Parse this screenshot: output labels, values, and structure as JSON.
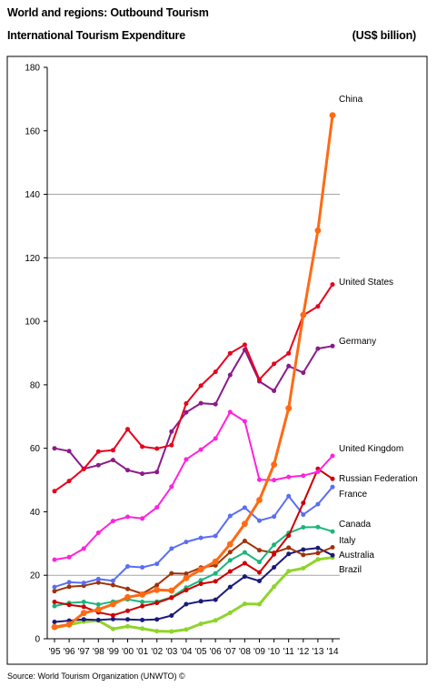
{
  "header": {
    "title_line1": "World and regions: Outbound Tourism",
    "title_line2": "International Tourism Expenditure",
    "unit": "(US$ billion)"
  },
  "footer": {
    "source": "Source: World Tourism Organization (UNWTO) ©"
  },
  "chart_data": {
    "type": "line",
    "title": "International Tourism Expenditure",
    "ylabel": "(US$ billion)",
    "xlabel": "",
    "ylim": [
      0,
      180
    ],
    "yticks": [
      0,
      20,
      40,
      60,
      80,
      100,
      120,
      140,
      160,
      180
    ],
    "grid": "horizontal gridlines at 20, 120, 140",
    "legend": "labels at right end of lines",
    "categories": [
      "'95",
      "'96",
      "'97",
      "'98",
      "'99",
      "'00",
      "'01",
      "'02",
      "'03",
      "'04",
      "'05",
      "'06",
      "'07",
      "'08",
      "'09",
      "'10",
      "'11",
      "'12",
      "'13",
      "'14"
    ],
    "series": [
      {
        "name": "China",
        "color": "#ff6a13",
        "values": [
          3.7,
          4.5,
          8.1,
          9.2,
          10.9,
          13.1,
          13.9,
          15.4,
          15.2,
          19.1,
          21.8,
          24.3,
          29.8,
          36.2,
          43.7,
          54.9,
          72.6,
          102,
          128.6,
          164.9
        ]
      },
      {
        "name": "United States",
        "color": "#e8001c",
        "values": [
          46.5,
          49.7,
          53.5,
          59,
          59.4,
          66,
          60.5,
          59.9,
          61,
          74.1,
          79.7,
          84.1,
          89.9,
          92.6,
          81.7,
          86.6,
          89.9,
          101.9,
          104.7,
          111.6
        ]
      },
      {
        "name": "Germany",
        "color": "#8b1a89",
        "values": [
          60,
          59.1,
          53.5,
          54.7,
          56.3,
          53.1,
          52,
          52.5,
          65.3,
          71.3,
          74.2,
          73.9,
          83.1,
          91,
          81.1,
          78.1,
          85.9,
          83.8,
          91.4,
          92.2
        ]
      },
      {
        "name": "United Kingdom",
        "color": "#ff22dd",
        "values": [
          24.9,
          25.7,
          28.4,
          33.4,
          37.1,
          38.4,
          37.9,
          41.4,
          47.9,
          56.5,
          59.6,
          63.1,
          71.4,
          68.5,
          50.1,
          50,
          51,
          51.4,
          52.6,
          57.6
        ]
      },
      {
        "name": "Russian Federation",
        "color": "#cc0000",
        "values": [
          11.6,
          10.7,
          10.1,
          8.3,
          7.4,
          8.8,
          10.3,
          11.3,
          12.9,
          15.3,
          17.3,
          18.1,
          21.2,
          23.8,
          20.9,
          26.6,
          32.5,
          42.8,
          53.5,
          50.4
        ]
      },
      {
        "name": "France",
        "color": "#5b6ef2",
        "values": [
          16.3,
          17.8,
          17.6,
          18.8,
          18.3,
          22.8,
          22.5,
          23.6,
          28.4,
          30.5,
          31.8,
          32.4,
          38.7,
          41.3,
          37.2,
          38.5,
          44.9,
          39.1,
          42.4,
          47.8
        ]
      },
      {
        "name": "Canada",
        "color": "#1bb57a",
        "values": [
          10.3,
          11.3,
          11.6,
          10.8,
          11.7,
          12.4,
          11.6,
          11.7,
          13.1,
          16.1,
          18.4,
          20.6,
          24.7,
          27.2,
          24.2,
          29.6,
          33.3,
          35.1,
          35.2,
          33.8
        ]
      },
      {
        "name": "Italy",
        "color": "#a0320a",
        "values": [
          15,
          16.4,
          16.7,
          17.7,
          16.9,
          15.7,
          14.2,
          16.9,
          20.6,
          20.5,
          22.4,
          23.1,
          27.3,
          30.8,
          27.9,
          27.1,
          28.7,
          26.4,
          27,
          28.8
        ]
      },
      {
        "name": "Australia",
        "color": "#1a1a7a",
        "values": [
          5.3,
          5.7,
          6.1,
          5.9,
          6.2,
          6.1,
          5.9,
          6.1,
          7.3,
          10.9,
          11.8,
          12.3,
          16.3,
          19.6,
          18.2,
          22.5,
          26.7,
          28.1,
          28.6,
          26.3
        ]
      },
      {
        "name": "Brazil",
        "color": "#8fd42a",
        "values": [
          3.4,
          4.4,
          5.4,
          5.7,
          3.1,
          3.9,
          3.2,
          2.4,
          2.3,
          2.9,
          4.7,
          5.8,
          8.2,
          11,
          10.9,
          16.4,
          21.3,
          22.2,
          25,
          25.6
        ]
      }
    ]
  }
}
